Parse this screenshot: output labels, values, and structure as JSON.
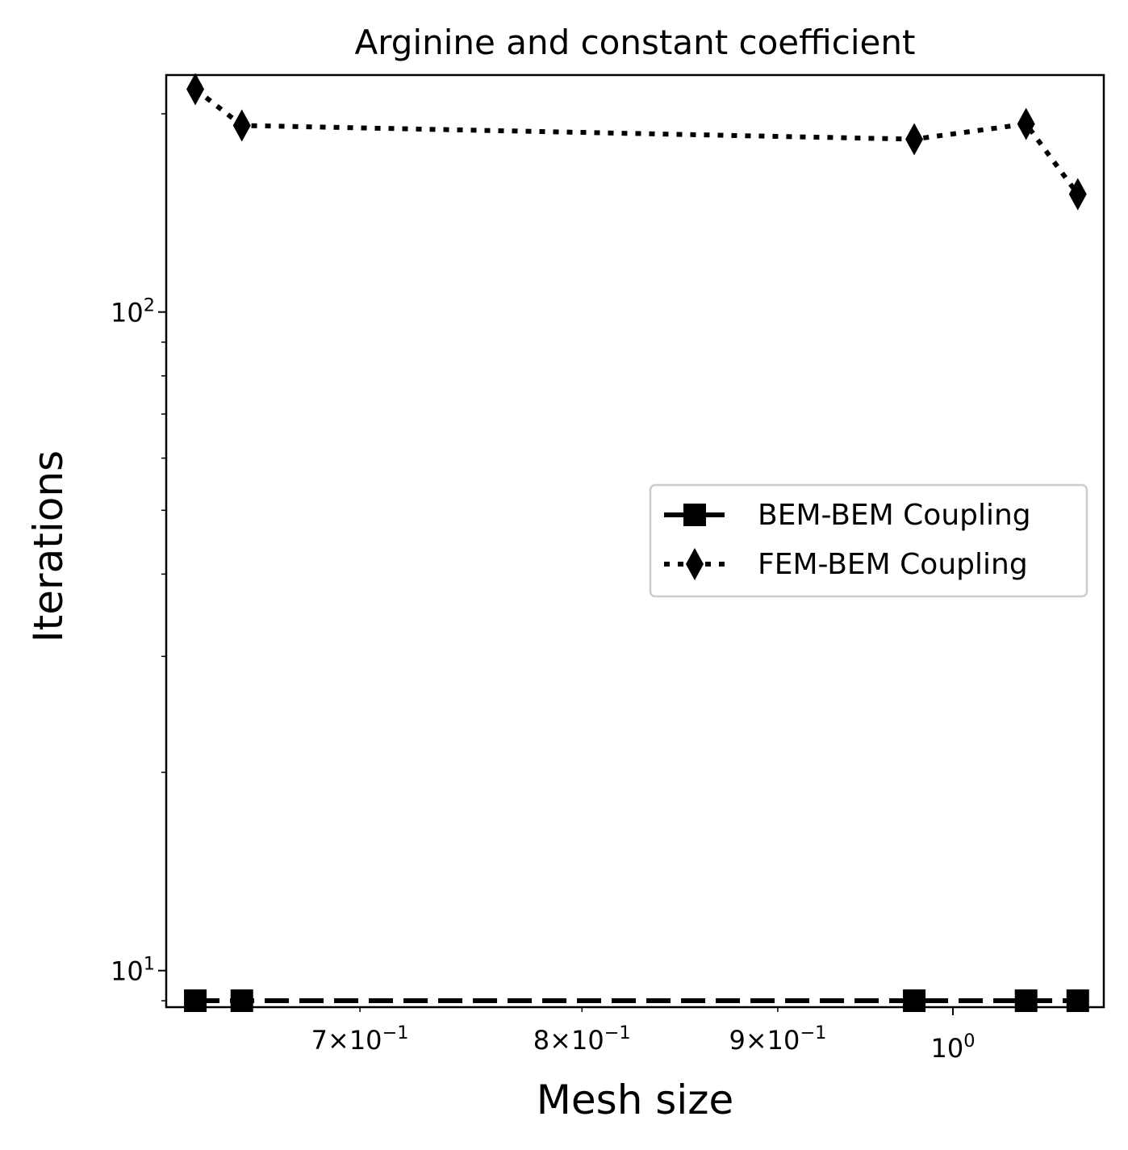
{
  "chart_data": {
    "type": "line",
    "title": "Arginine and constant coefficient",
    "xlabel": "Mesh size",
    "ylabel": "Iterations",
    "xscale": "log",
    "yscale": "log",
    "xlim": [
      0.623,
      1.095
    ],
    "ylim": [
      8.8,
      229
    ],
    "x_ticks": [
      {
        "value": 0.7,
        "base": "7",
        "exp": "−1",
        "kind": "sci"
      },
      {
        "value": 0.8,
        "base": "8",
        "exp": "−1",
        "kind": "sci"
      },
      {
        "value": 0.9,
        "base": "9",
        "exp": "−1",
        "kind": "sci"
      },
      {
        "value": 1.0,
        "base": "10",
        "exp": "0",
        "kind": "pow"
      }
    ],
    "y_ticks": [
      {
        "value": 10,
        "base": "10",
        "exp": "1"
      },
      {
        "value": 100,
        "base": "10",
        "exp": "2"
      }
    ],
    "x": [
      0.634,
      0.652,
      0.977,
      1.045,
      1.078
    ],
    "series": [
      {
        "name": "BEM-BEM Coupling",
        "values": [
          9,
          9,
          9,
          9,
          9
        ],
        "marker": "square",
        "line": "dashed",
        "color": "#000000"
      },
      {
        "name": "FEM-BEM Coupling",
        "values": [
          218,
          192,
          183,
          193,
          151
        ],
        "marker": "diamond",
        "line": "dotted",
        "color": "#000000"
      }
    ],
    "legend": {
      "position": "center-right"
    },
    "grid": false
  }
}
